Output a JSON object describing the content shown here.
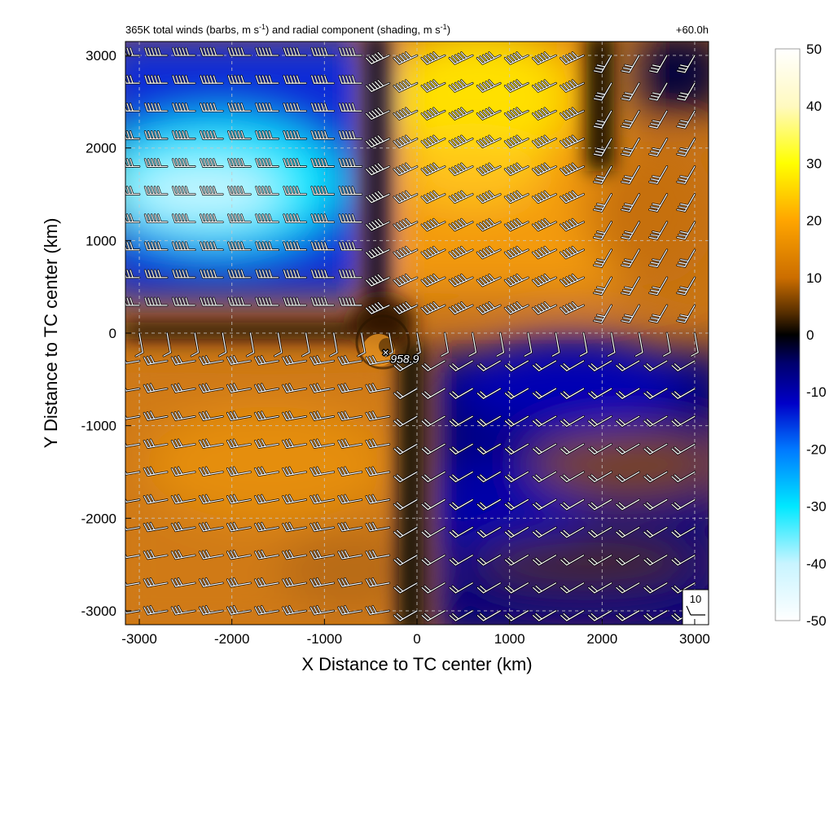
{
  "chart_data": {
    "type": "heatmap",
    "title": "365K total winds (barbs, m s⁻¹) and radial component (shading, m s⁻¹)",
    "title_parts": {
      "a": "365K total winds (barbs, m s",
      "exp1": "-1",
      "b": ") and radial component (shading, m s",
      "exp2": "-1",
      "c": ")"
    },
    "time_label": "+60.0h",
    "xlabel": "X Distance to TC center (km)",
    "ylabel": "Y Distance to TC center (km)",
    "xlim": [
      -3150,
      3150
    ],
    "ylim": [
      -3150,
      3150
    ],
    "xticks": [
      -3000,
      -2000,
      -1000,
      0,
      1000,
      2000,
      3000
    ],
    "yticks": [
      -3000,
      -2000,
      -1000,
      0,
      1000,
      2000,
      3000
    ],
    "grid": true,
    "colorbar": {
      "min": -50,
      "max": 50,
      "ticks": [
        50,
        40,
        30,
        20,
        10,
        0,
        -10,
        -20,
        -30,
        -40,
        -50
      ],
      "colors": [
        "#ffffff",
        "#c8f4ff",
        "#00e8ff",
        "#0078ff",
        "#0000b4",
        "#000000",
        "#6a3800",
        "#cc6e00",
        "#ffa500",
        "#ffff00",
        "#ffffff"
      ]
    },
    "annotation": {
      "label": "958.9",
      "x": -340,
      "y": -200,
      "marker": "×"
    },
    "reference_barb": {
      "label": "10"
    },
    "field_regions": [
      {
        "sign": "negative",
        "x": [
          -3150,
          -450
        ],
        "y": [
          150,
          3150
        ],
        "peak_value": -45,
        "peak_at": [
          -2300,
          1550
        ]
      },
      {
        "sign": "positive",
        "x": [
          -450,
          2000
        ],
        "y": [
          200,
          3150
        ],
        "peak_value": 30,
        "peak_at": [
          800,
          2500
        ]
      },
      {
        "sign": "negative",
        "x": [
          2000,
          3150
        ],
        "y": [
          2400,
          3150
        ],
        "peak_value": -15
      },
      {
        "sign": "negative",
        "x": [
          -200,
          3150
        ],
        "y": [
          -3150,
          -100
        ],
        "peak_value": -15
      },
      {
        "sign": "positive",
        "x": [
          -3150,
          -50
        ],
        "y": [
          -3150,
          150
        ],
        "peak_value": 15
      },
      {
        "sign": "positive",
        "x": [
          1200,
          3150
        ],
        "y": [
          -1800,
          -800
        ],
        "peak_value": 8
      }
    ]
  }
}
